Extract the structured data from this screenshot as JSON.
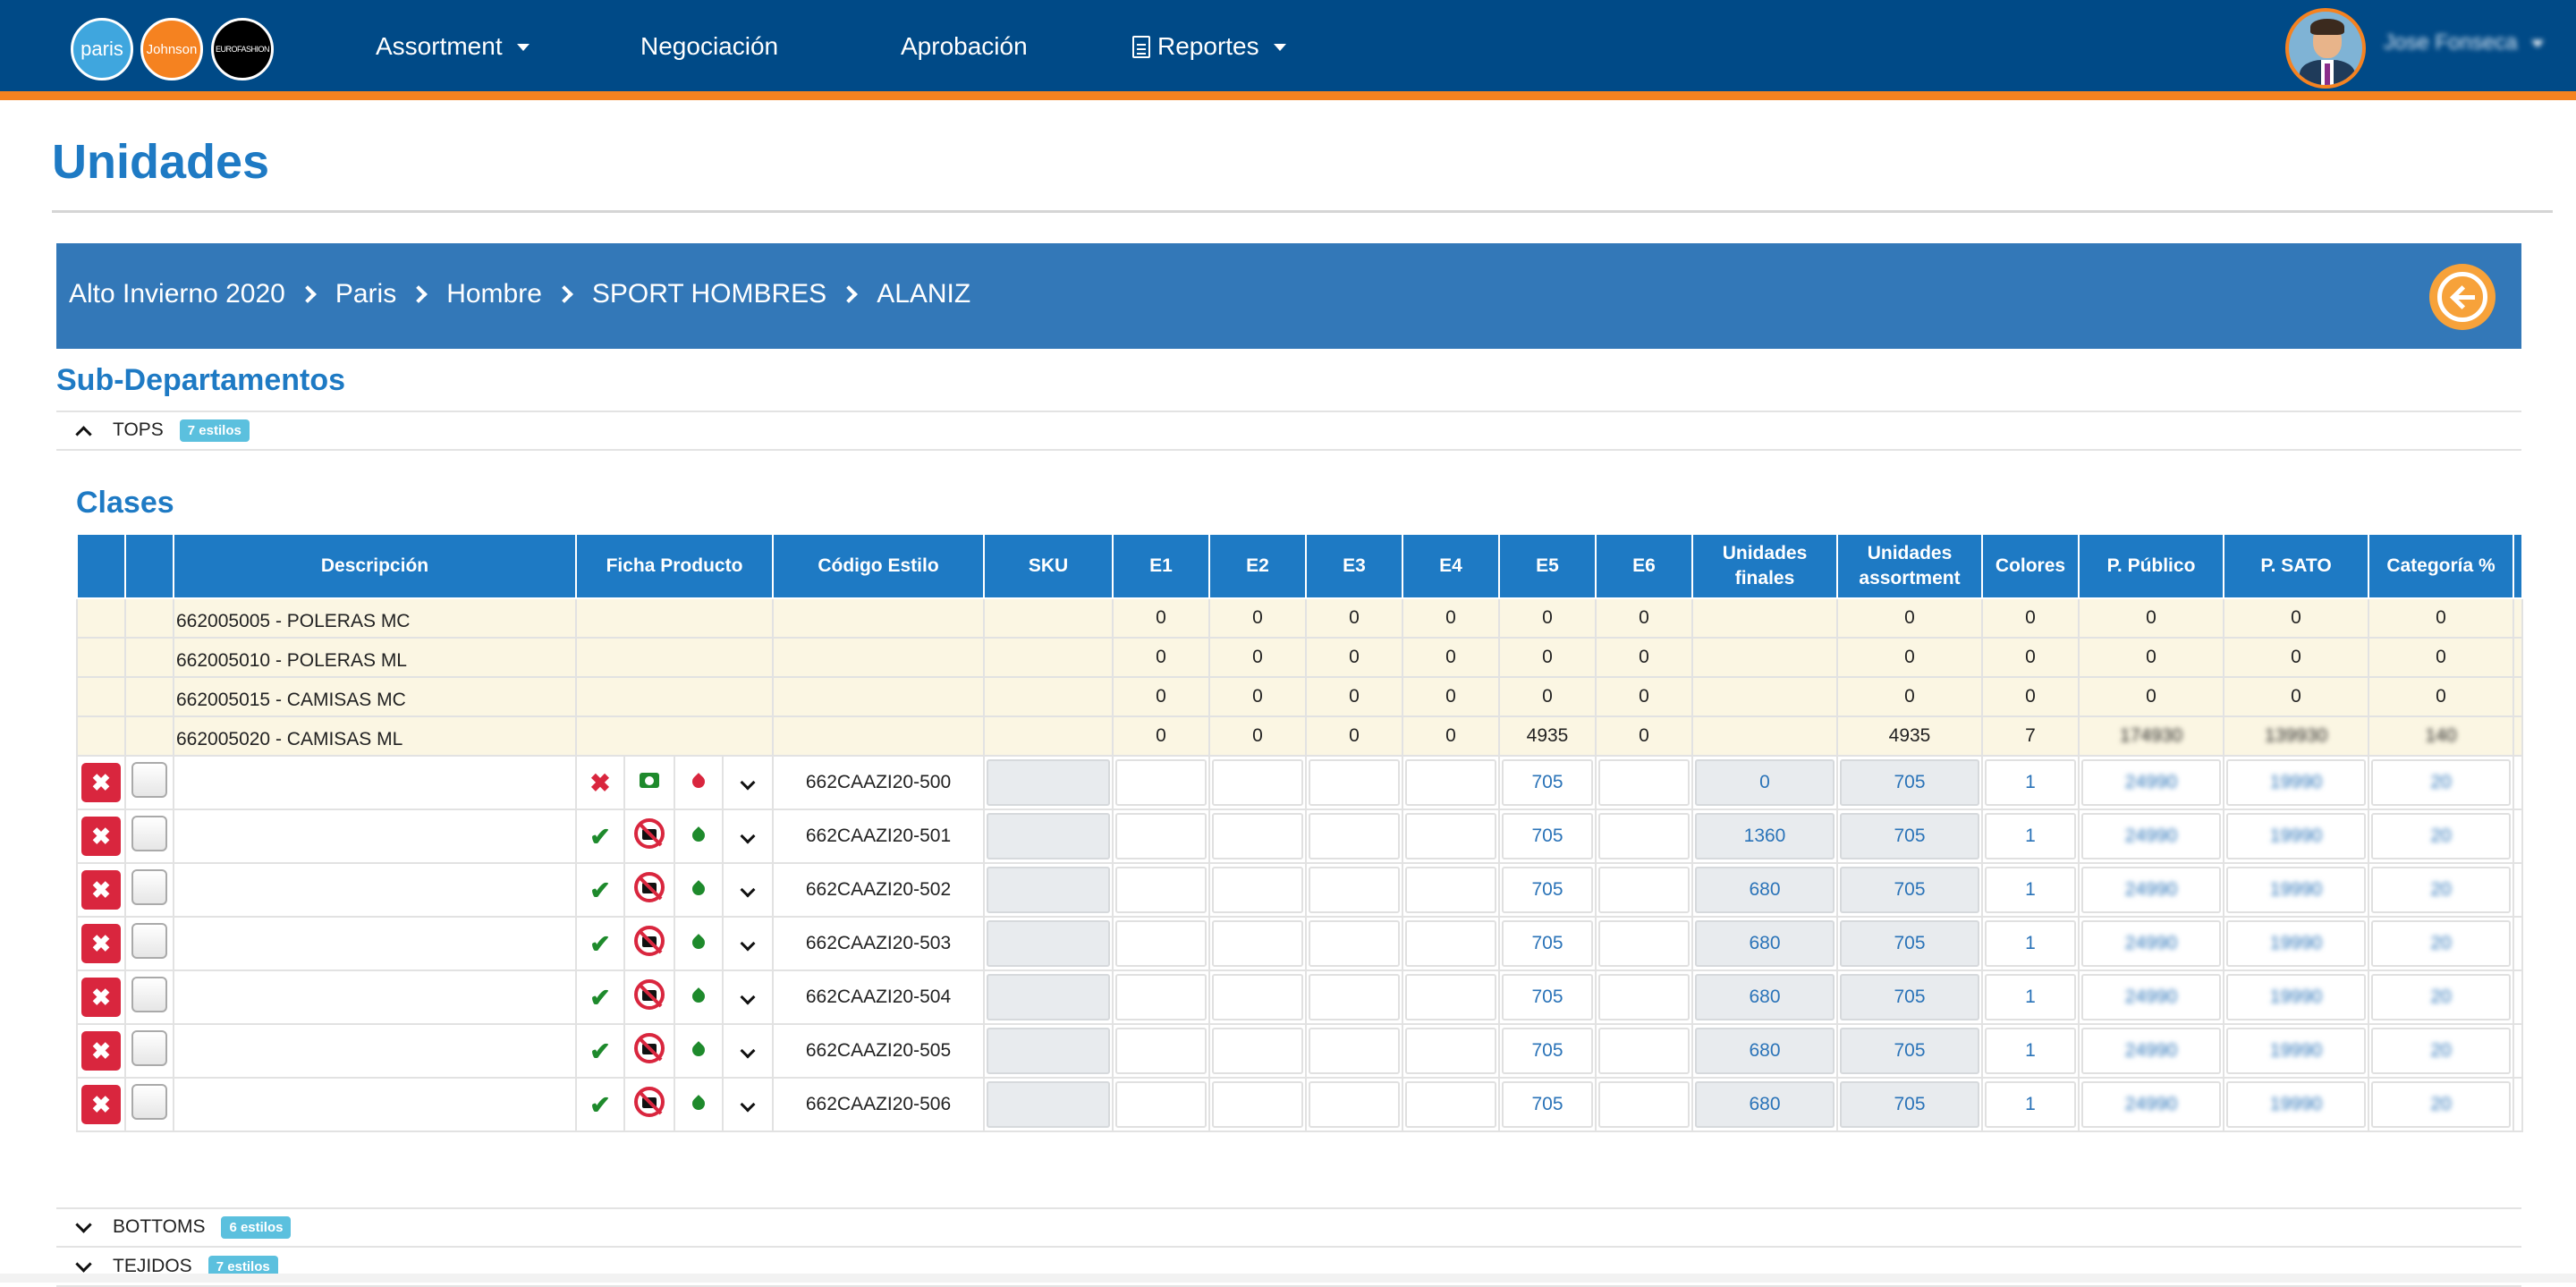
{
  "nav": {
    "logos": [
      "paris",
      "Johnson",
      "EUROFASHION"
    ],
    "items": [
      {
        "label": "Assortment",
        "dropdown": true
      },
      {
        "label": "Negociación",
        "dropdown": false
      },
      {
        "label": "Aprobación",
        "dropdown": false
      },
      {
        "label": "Reportes",
        "dropdown": true,
        "icon": "document-icon"
      }
    ],
    "user_name": "Jose Fonseca"
  },
  "page": {
    "title": "Unidades"
  },
  "breadcrumb": [
    "Alto Invierno 2020",
    "Paris",
    "Hombre",
    "SPORT HOMBRES",
    "ALANIZ"
  ],
  "subdepartamentos": {
    "heading": "Sub-Departamentos",
    "groups": [
      {
        "name": "TOPS",
        "badge": "7 estilos",
        "expanded": true
      },
      {
        "name": "BOTTOMS",
        "badge": "6 estilos",
        "expanded": false
      },
      {
        "name": "TEJIDOS",
        "badge": "7 estilos",
        "expanded": false
      }
    ]
  },
  "clases": {
    "heading": "Clases",
    "columns": [
      "",
      "",
      "Descripción",
      "Ficha Producto",
      "Código Estilo",
      "SKU",
      "E1",
      "E2",
      "E3",
      "E4",
      "E5",
      "E6",
      "Unidades finales",
      "Unidades assortment",
      "Colores",
      "P. Público",
      "P. SATO",
      "Categoría %"
    ],
    "summary_rows": [
      {
        "desc": "662005005 - POLERAS MC",
        "e1": "0",
        "e2": "0",
        "e3": "0",
        "e4": "0",
        "e5": "0",
        "e6": "0",
        "uf": "",
        "ua": "0",
        "colores": "0",
        "pp": "0",
        "ps": "0",
        "cat": "0"
      },
      {
        "desc": "662005010 - POLERAS ML",
        "e1": "0",
        "e2": "0",
        "e3": "0",
        "e4": "0",
        "e5": "0",
        "e6": "0",
        "uf": "",
        "ua": "0",
        "colores": "0",
        "pp": "0",
        "ps": "0",
        "cat": "0"
      },
      {
        "desc": "662005015 - CAMISAS MC",
        "e1": "0",
        "e2": "0",
        "e3": "0",
        "e4": "0",
        "e5": "0",
        "e6": "0",
        "uf": "",
        "ua": "0",
        "colores": "0",
        "pp": "0",
        "ps": "0",
        "cat": "0"
      },
      {
        "desc": "662005020 - CAMISAS ML",
        "e1": "0",
        "e2": "0",
        "e3": "0",
        "e4": "0",
        "e5": "4935",
        "e6": "0",
        "uf": "",
        "ua": "4935",
        "colores": "7",
        "pp": "174930",
        "ps": "139930",
        "cat": "140"
      }
    ],
    "item_rows": [
      {
        "ficha": "x",
        "cam": "camera",
        "drop": "red",
        "codigo": "662CAAZI20-500",
        "e5": "705",
        "uf": "0",
        "ua": "705",
        "colores": "1",
        "pp": "24990",
        "ps": "19990",
        "cat": "20"
      },
      {
        "ficha": "ok",
        "cam": "no-camera",
        "drop": "green",
        "codigo": "662CAAZI20-501",
        "e5": "705",
        "uf": "1360",
        "ua": "705",
        "colores": "1",
        "pp": "24990",
        "ps": "19990",
        "cat": "20"
      },
      {
        "ficha": "ok",
        "cam": "no-camera",
        "drop": "green",
        "codigo": "662CAAZI20-502",
        "e5": "705",
        "uf": "680",
        "ua": "705",
        "colores": "1",
        "pp": "24990",
        "ps": "19990",
        "cat": "20"
      },
      {
        "ficha": "ok",
        "cam": "no-camera",
        "drop": "green",
        "codigo": "662CAAZI20-503",
        "e5": "705",
        "uf": "680",
        "ua": "705",
        "colores": "1",
        "pp": "24990",
        "ps": "19990",
        "cat": "20"
      },
      {
        "ficha": "ok",
        "cam": "no-camera",
        "drop": "green",
        "codigo": "662CAAZI20-504",
        "e5": "705",
        "uf": "680",
        "ua": "705",
        "colores": "1",
        "pp": "24990",
        "ps": "19990",
        "cat": "20"
      },
      {
        "ficha": "ok",
        "cam": "no-camera",
        "drop": "green",
        "codigo": "662CAAZI20-505",
        "e5": "705",
        "uf": "680",
        "ua": "705",
        "colores": "1",
        "pp": "24990",
        "ps": "19990",
        "cat": "20"
      },
      {
        "ficha": "ok",
        "cam": "no-camera",
        "drop": "green",
        "codigo": "662CAAZI20-506",
        "e5": "705",
        "uf": "680",
        "ua": "705",
        "colores": "1",
        "pp": "24990",
        "ps": "19990",
        "cat": "20"
      }
    ]
  },
  "colors": {
    "navbar": "#004a87",
    "accent": "#f58220",
    "primary": "#1e7ac4",
    "breadcrumb_bg": "#3378b8",
    "danger": "#d9263e",
    "success": "#1e8a2c",
    "badge": "#5bc0de",
    "summary_bg": "#fbf6e3"
  }
}
